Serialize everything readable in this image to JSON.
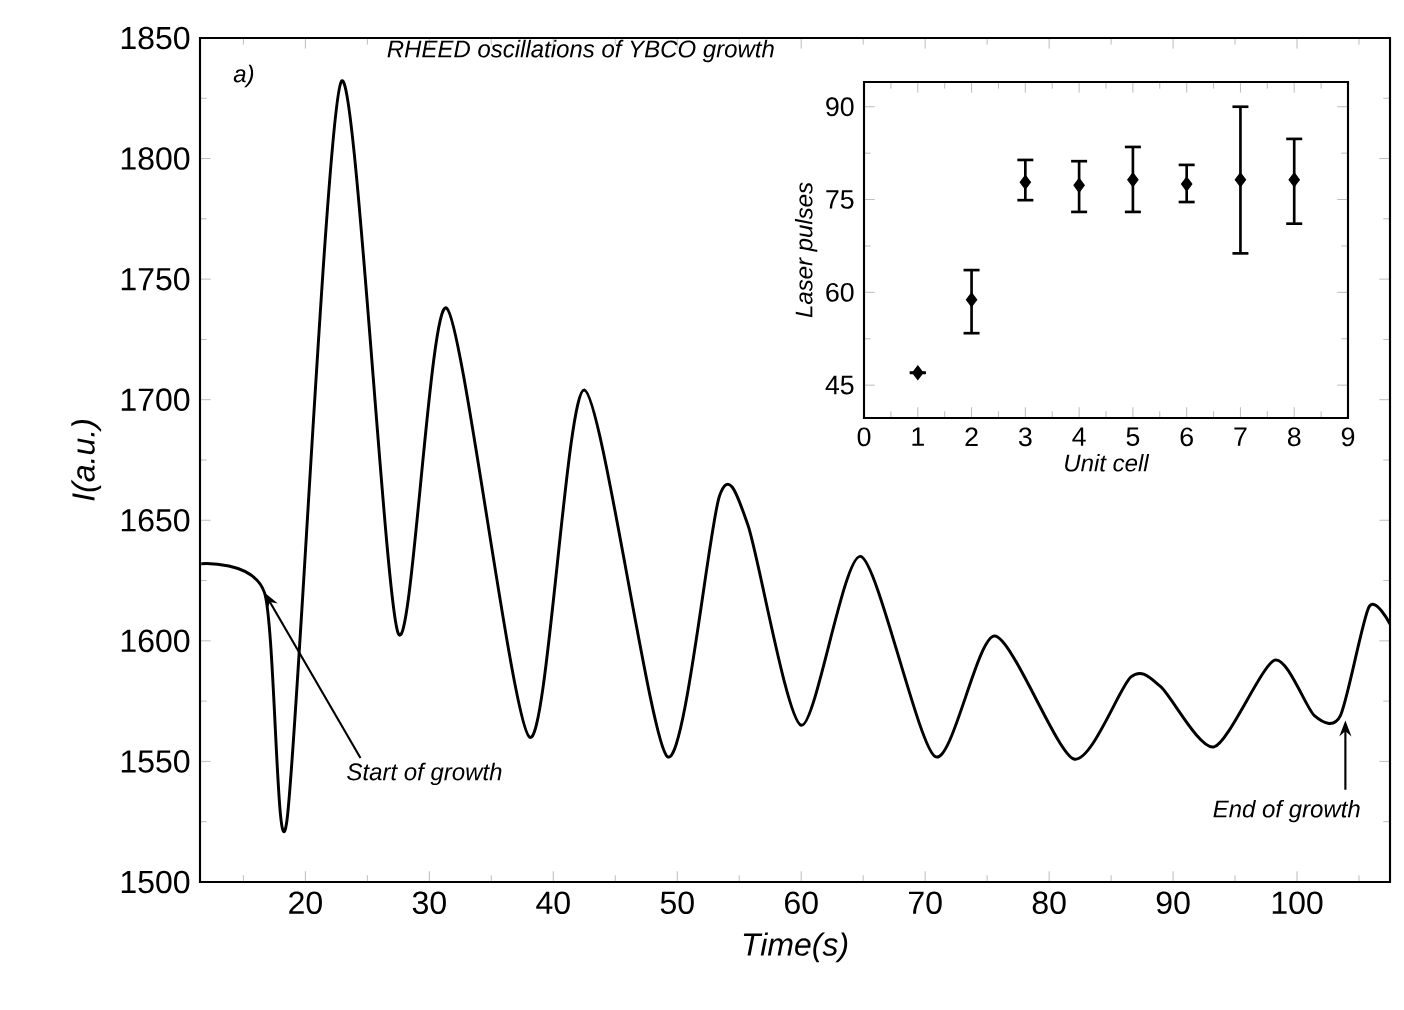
{
  "chart_data": [
    {
      "type": "line",
      "title": "RHEED oscillations of YBCO growth",
      "xlabel": "Time(s)",
      "ylabel": "I(a.u.)",
      "color": "#000000",
      "x": [
        11.6,
        16.7,
        18.5,
        22.9,
        27.5,
        31.4,
        38.1,
        42.5,
        49.2,
        53.4,
        55.7,
        60.0,
        64.8,
        70.8,
        75.6,
        82.0,
        86.6,
        89.0,
        93.3,
        98.2,
        101.4,
        103.5,
        105.8,
        107.5
      ],
      "values": [
        1632,
        1620,
        1525,
        1832,
        1603,
        1738,
        1560,
        1704,
        1552,
        1660,
        1648,
        1565,
        1635,
        1552,
        1602,
        1551,
        1585,
        1581,
        1556,
        1592,
        1569,
        1569,
        1614,
        1607
      ],
      "xlim": [
        11.5,
        107.5
      ],
      "ylim": [
        1500,
        1850
      ],
      "xticks": [
        {
          "value": 15,
          "label": null
        },
        20,
        {
          "value": 25,
          "label": null
        },
        30,
        {
          "value": 35,
          "label": null
        },
        40,
        {
          "value": 45,
          "label": null
        },
        50,
        {
          "value": 55,
          "label": null
        },
        60,
        {
          "value": 65,
          "label": null
        },
        70,
        {
          "value": 75,
          "label": null
        },
        80,
        {
          "value": 85,
          "label": null
        },
        90,
        {
          "value": 95,
          "label": null
        },
        100,
        {
          "value": 105,
          "label": null
        }
      ],
      "yticks": [
        1500,
        {
          "value": 1525,
          "label": null
        },
        1550,
        {
          "value": 1575,
          "label": null
        },
        1600,
        {
          "value": 1625,
          "label": null
        },
        1650,
        {
          "value": 1675,
          "label": null
        },
        1700,
        {
          "value": 1725,
          "label": null
        },
        1750,
        {
          "value": 1775,
          "label": null
        },
        1800,
        {
          "value": 1825,
          "label": null
        },
        1850
      ],
      "annotations": [
        "a)",
        {
          "text": "Start of growth",
          "x": 16.7,
          "y": 1620
        },
        {
          "text": "End of growth",
          "x": 103.9,
          "y": 1567
        }
      ]
    },
    {
      "type": "scatter",
      "xlabel": "Unit cell",
      "ylabel": "Laser pulses",
      "color": "#000000",
      "marker": "diamond",
      "x": [
        1,
        2,
        3,
        4,
        5,
        6,
        7,
        8
      ],
      "values": [
        47,
        58.8,
        77.8,
        77.3,
        78.2,
        77.5,
        78.2,
        78.2
      ],
      "errors": [
        null,
        [
          53.4,
          63.6
        ],
        [
          74.9,
          81.4
        ],
        [
          73.0,
          81.2
        ],
        [
          73.0,
          83.5
        ],
        [
          74.6,
          80.6
        ],
        [
          66.3,
          90.0
        ],
        [
          71.1,
          84.8
        ]
      ],
      "xlim": [
        0,
        9
      ],
      "ylim": [
        39.7,
        94
      ],
      "xticks": [
        0,
        {
          "value": 0.5,
          "label": null
        },
        1,
        {
          "value": 1.5,
          "label": null
        },
        2,
        {
          "value": 2.5,
          "label": null
        },
        3,
        {
          "value": 3.5,
          "label": null
        },
        4,
        {
          "value": 4.5,
          "label": null
        },
        5,
        {
          "value": 5.5,
          "label": null
        },
        6,
        {
          "value": 6.5,
          "label": null
        },
        7,
        {
          "value": 7.5,
          "label": null
        },
        8,
        {
          "value": 8.5,
          "label": null
        },
        9
      ],
      "yticks": [
        45,
        {
          "value": 52.5,
          "label": null
        },
        60,
        {
          "value": 67.5,
          "label": null
        },
        75,
        {
          "value": 82.5,
          "label": null
        },
        90
      ]
    }
  ]
}
